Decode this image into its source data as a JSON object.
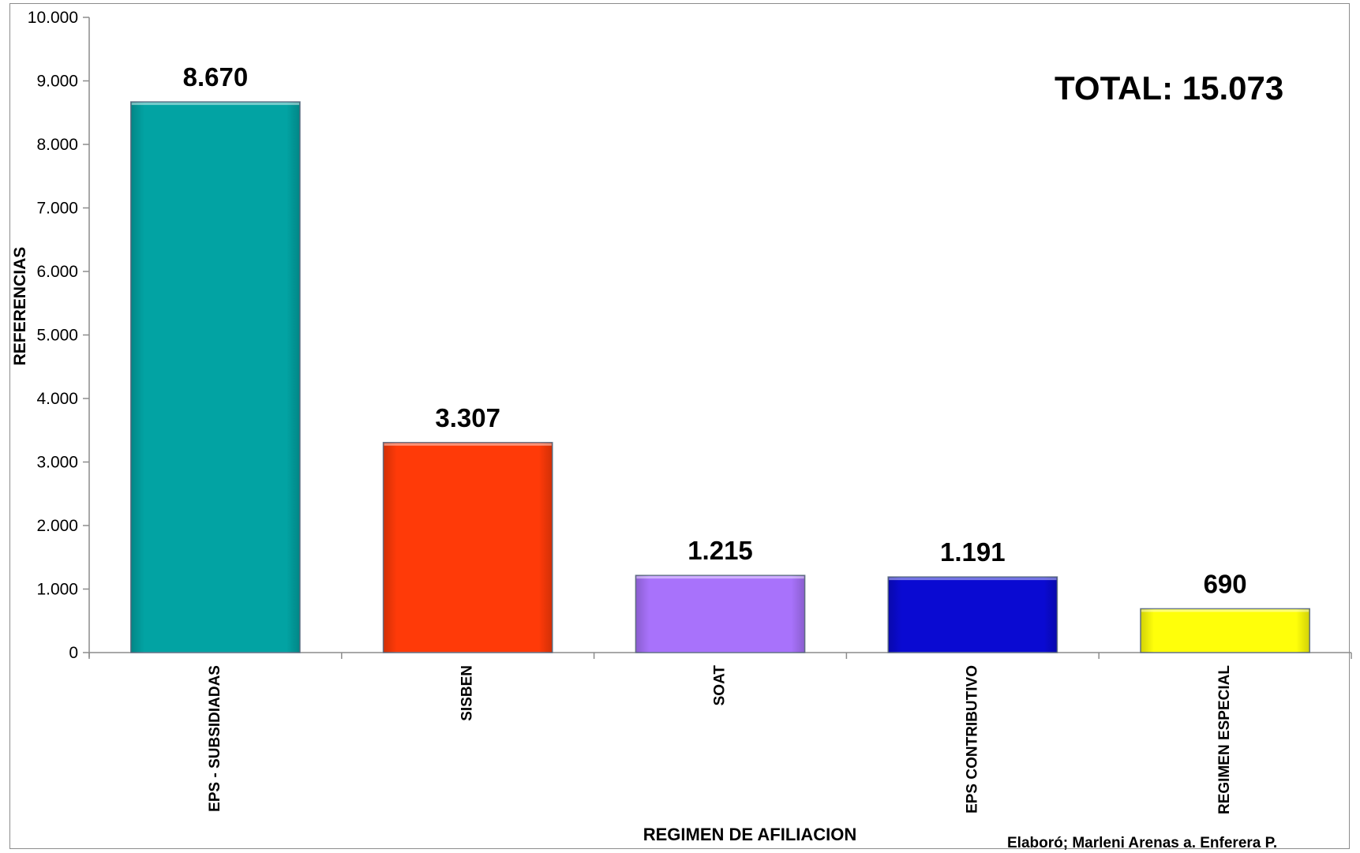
{
  "chart_data": {
    "type": "bar",
    "categories": [
      "EPS - SUBSIDIADAS",
      "SISBEN",
      "SOAT",
      "EPS CONTRIBUTIVO",
      "REGIMEN ESPECIAL"
    ],
    "values": [
      8670,
      3307,
      1215,
      1191,
      690
    ],
    "data_labels": [
      "8.670",
      "3.307",
      "1.215",
      "1.191",
      "690"
    ],
    "colors": [
      "#02a3a3",
      "#ff3a08",
      "#a872fb",
      "#0a0ad2",
      "#ffff0a"
    ],
    "ylim": [
      0,
      10000
    ],
    "yticks": [
      0,
      1000,
      2000,
      3000,
      4000,
      5000,
      6000,
      7000,
      8000,
      9000,
      10000
    ],
    "ytick_labels": [
      "0",
      "1.000",
      "2.000",
      "3.000",
      "4.000",
      "5.000",
      "6.000",
      "7.000",
      "8.000",
      "9.000",
      "10.000"
    ],
    "xlabel": "REGIMEN DE AFILIACION",
    "ylabel": "REFERENCIAS",
    "annotation": "TOTAL: 15.073",
    "credit": "Elaboró; Marleni Arenas a. Enferera P.",
    "grid": false,
    "legend": "none"
  }
}
